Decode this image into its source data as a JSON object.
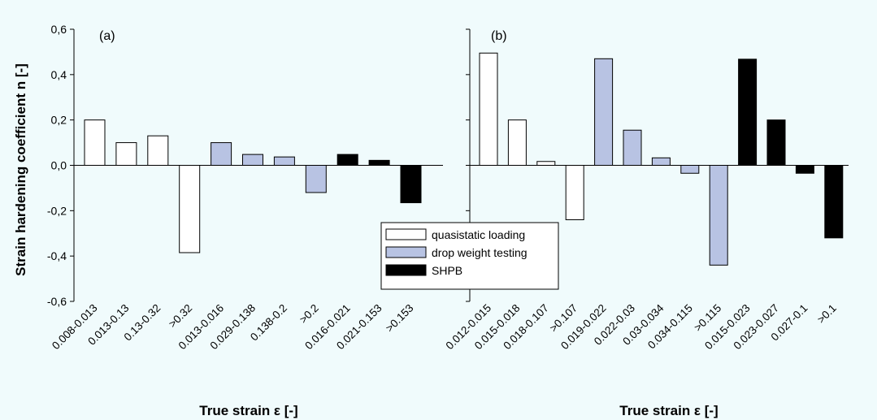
{
  "figure": {
    "ylabel": "Strain hardening coefficient n [-]",
    "yticks": [
      "0,6",
      "0,4",
      "0,2",
      "0,0",
      "-0,2",
      "-0,4",
      "-0,6"
    ],
    "ytick_values": [
      0.6,
      0.4,
      0.2,
      0.0,
      -0.2,
      -0.4,
      -0.6
    ],
    "legend": [
      {
        "label": "quasistatic loading",
        "group": "quasistatic"
      },
      {
        "label": "drop weight testing",
        "group": "drop"
      },
      {
        "label": "SHPB",
        "group": "shpb"
      }
    ]
  },
  "colors": {
    "quasistatic": "#ffffff",
    "drop": "#b8c3e3",
    "shpb": "#000000",
    "background": "#f0fbfc"
  },
  "chart_data": [
    {
      "type": "bar",
      "panel_label": "(a)",
      "xlabel": "True strain ε [-]",
      "ylabel": "Strain hardening coefficient n [-]",
      "ylim": [
        -0.6,
        0.6
      ],
      "categories": [
        "0.008-0.013",
        "0.013-0.13",
        "0.13-0.32",
        ">0.32",
        "0.013-0.016",
        "0.029-0.138",
        "0.138-0.2",
        ">0.2",
        "0.016-0.021",
        "0.021-0.153",
        ">0.153"
      ],
      "values": [
        0.2,
        0.1,
        0.13,
        -0.385,
        0.1,
        0.048,
        0.037,
        -0.12,
        0.048,
        0.022,
        -0.165
      ],
      "groups": [
        "quasistatic",
        "quasistatic",
        "quasistatic",
        "quasistatic",
        "drop",
        "drop",
        "drop",
        "drop",
        "shpb",
        "shpb",
        "shpb"
      ]
    },
    {
      "type": "bar",
      "panel_label": "(b)",
      "xlabel": "True strain ε [-]",
      "ylabel": "",
      "ylim": [
        -0.6,
        0.6
      ],
      "categories": [
        "0.012-0.015",
        "0.015-0.018",
        "0.018-0.107",
        ">0.107",
        "0.019-0.022",
        "0.022-0.03",
        "0.03-0.034",
        "0.034-0.115",
        ">0.115",
        "0.015-0.023",
        "0.023-0.027",
        "0.027-0.1",
        ">0.1"
      ],
      "values": [
        0.495,
        0.2,
        0.017,
        -0.24,
        0.47,
        0.155,
        0.033,
        -0.035,
        -0.44,
        0.468,
        0.2,
        -0.035,
        -0.32
      ],
      "groups": [
        "quasistatic",
        "quasistatic",
        "quasistatic",
        "quasistatic",
        "drop",
        "drop",
        "drop",
        "drop",
        "drop",
        "shpb",
        "shpb",
        "shpb",
        "shpb"
      ]
    }
  ]
}
